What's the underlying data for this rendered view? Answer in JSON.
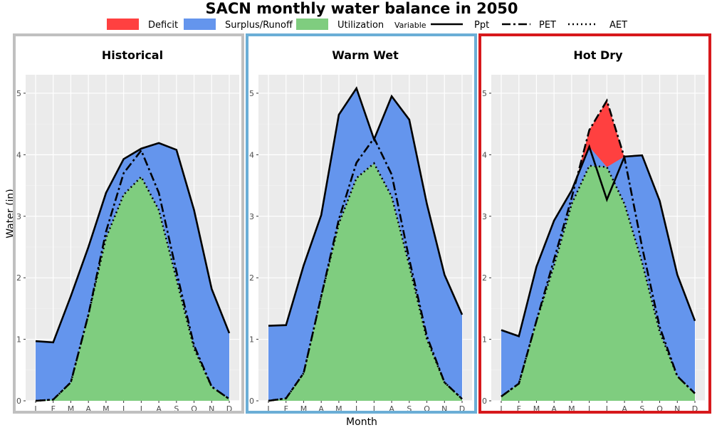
{
  "chart_data": {
    "type": "area",
    "title": "SACN monthly water balance in 2050",
    "xlabel": "Month",
    "ylabel": "Water (in)",
    "ylim": [
      0,
      5.3
    ],
    "yticks": [
      0,
      1,
      2,
      3,
      4,
      5
    ],
    "categories": [
      "J",
      "F",
      "M",
      "A",
      "M",
      "J",
      "J",
      "A",
      "S",
      "O",
      "N",
      "D"
    ],
    "grid": true,
    "legend_position": "top",
    "fill_legend": [
      {
        "label": "Deficit",
        "color": "#ff4040"
      },
      {
        "label": "Surplus/Runoff",
        "color": "#6495ed"
      },
      {
        "label": "Utilization",
        "color": "#7fcd7f"
      }
    ],
    "line_legend": {
      "title": "Variable",
      "items": [
        {
          "label": "Ppt",
          "dash": "solid"
        },
        {
          "label": "PET",
          "dash": "longdash"
        },
        {
          "label": "AET",
          "dash": "dotted"
        }
      ]
    },
    "panels": [
      {
        "title": "Historical",
        "border_color": "#c0c0c0",
        "series": [
          {
            "name": "Ppt",
            "values": [
              0.97,
              0.95,
              1.7,
              2.5,
              3.38,
              3.93,
              4.1,
              4.19,
              4.08,
              3.1,
              1.82,
              1.1
            ]
          },
          {
            "name": "PET",
            "values": [
              0.0,
              0.02,
              0.3,
              1.4,
              2.75,
              3.7,
              4.07,
              3.38,
              2.1,
              0.9,
              0.23,
              0.03
            ]
          },
          {
            "name": "AET",
            "values": [
              0.0,
              0.02,
              0.3,
              1.4,
              2.65,
              3.35,
              3.64,
              3.1,
              1.98,
              0.85,
              0.23,
              0.03
            ]
          }
        ]
      },
      {
        "title": "Warm Wet",
        "border_color": "#6baed6",
        "series": [
          {
            "name": "Ppt",
            "values": [
              1.22,
              1.23,
              2.2,
              3.02,
              4.65,
              5.08,
              4.25,
              4.95,
              4.57,
              3.2,
              2.05,
              1.4
            ]
          },
          {
            "name": "PET",
            "values": [
              0.0,
              0.04,
              0.45,
              1.7,
              2.95,
              3.87,
              4.27,
              3.68,
              2.3,
              1.05,
              0.3,
              0.03
            ]
          },
          {
            "name": "AET",
            "values": [
              0.0,
              0.04,
              0.45,
              1.7,
              2.88,
              3.62,
              3.86,
              3.32,
              2.2,
              1.0,
              0.3,
              0.03
            ]
          }
        ]
      },
      {
        "title": "Hot Dry",
        "border_color": "#d7191c",
        "series": [
          {
            "name": "Ppt",
            "values": [
              1.15,
              1.05,
              2.18,
              2.93,
              3.42,
              4.13,
              3.27,
              3.97,
              3.99,
              3.25,
              2.05,
              1.3
            ]
          },
          {
            "name": "PET",
            "values": [
              0.07,
              0.28,
              1.3,
              2.3,
              3.3,
              4.4,
              4.88,
              3.95,
              2.5,
              1.2,
              0.4,
              0.12
            ]
          },
          {
            "name": "AET",
            "values": [
              0.07,
              0.28,
              1.3,
              2.2,
              3.2,
              3.82,
              3.8,
              3.2,
              2.25,
              1.12,
              0.4,
              0.12
            ]
          }
        ]
      }
    ]
  }
}
